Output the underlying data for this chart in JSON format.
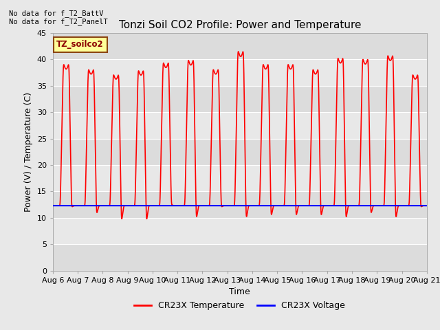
{
  "title": "Tonzi Soil CO2 Profile: Power and Temperature",
  "ylabel": "Power (V) / Temperature (C)",
  "xlabel": "Time",
  "ylim": [
    0,
    45
  ],
  "x_tick_labels": [
    "Aug 6",
    "Aug 7",
    "Aug 8",
    "Aug 9",
    "Aug 10",
    "Aug 11",
    "Aug 12",
    "Aug 13",
    "Aug 14",
    "Aug 15",
    "Aug 16",
    "Aug 17",
    "Aug 18",
    "Aug 19",
    "Aug 20",
    "Aug 21"
  ],
  "no_data_text_1": "No data for f_T2_BattV",
  "no_data_text_2": "No data for f_T2_PanelT",
  "legend_label_text": "TZ_soilco2",
  "temp_color": "#FF0000",
  "voltage_color": "#0000FF",
  "fig_bg_color": "#E8E8E8",
  "plot_bg_color": "#E8E8E8",
  "band_light": "#EBEBEB",
  "band_dark": "#D8D8D8",
  "voltage_value": 12.3,
  "title_fontsize": 11,
  "axis_fontsize": 9,
  "tick_fontsize": 8,
  "day_peaks": [
    39.5,
    38.5,
    37.5,
    38.3,
    39.8,
    40.3,
    38.5,
    42.0,
    39.5,
    39.5,
    38.5,
    40.7,
    40.5,
    41.2,
    37.5
  ],
  "day_mins": [
    12.0,
    10.5,
    9.0,
    9.0,
    12.5,
    9.5,
    12.0,
    9.5,
    10.0,
    10.0,
    10.0,
    9.5,
    10.5,
    9.5,
    12.0
  ],
  "n_days": 15
}
